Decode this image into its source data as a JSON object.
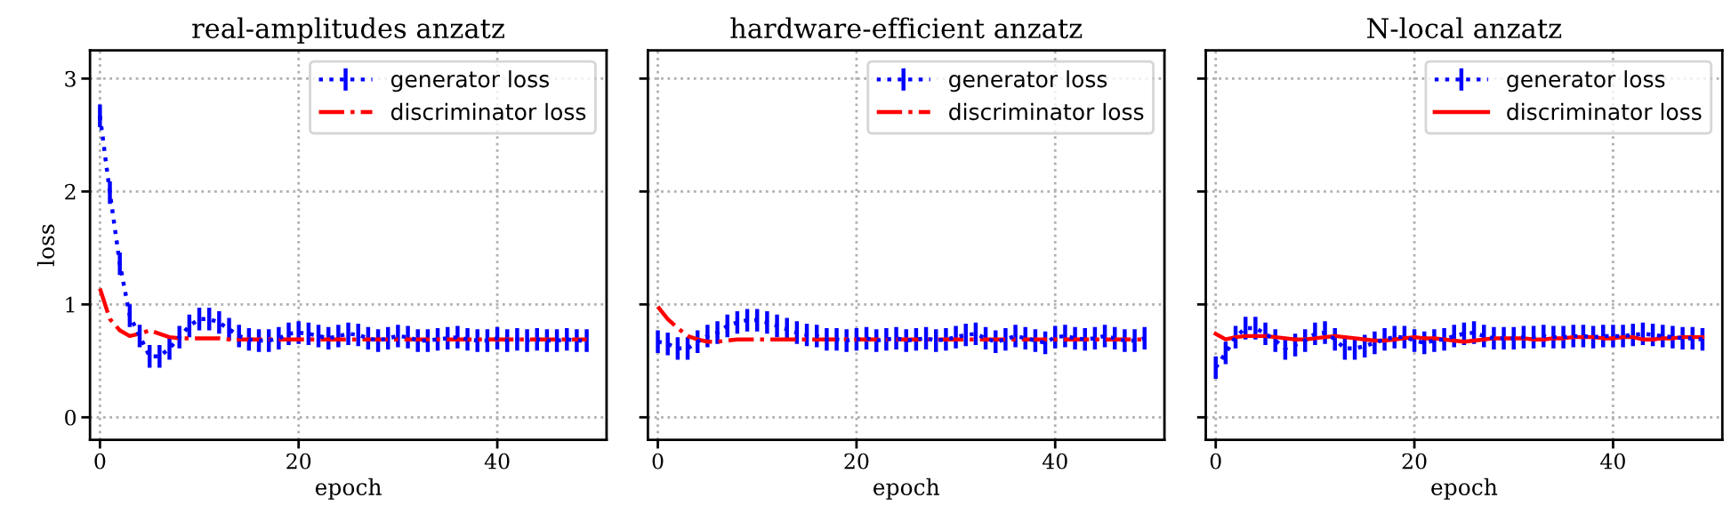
{
  "chart_data": [
    {
      "type": "line",
      "title": "real-amplitudes anzatz",
      "xlabel": "epoch",
      "ylabel": "loss",
      "xlim": [
        -1,
        51
      ],
      "xticks": [
        0,
        20,
        40
      ],
      "ylim": [
        -0.2,
        3.25
      ],
      "yticks": [
        0,
        1,
        2,
        3
      ],
      "grid": true,
      "legend": "top right",
      "x": [
        0,
        1,
        2,
        3,
        4,
        5,
        6,
        7,
        8,
        9,
        10,
        11,
        12,
        13,
        14,
        15,
        16,
        17,
        18,
        19,
        20,
        21,
        22,
        23,
        24,
        25,
        26,
        27,
        28,
        29,
        30,
        31,
        32,
        33,
        34,
        35,
        36,
        37,
        38,
        39,
        40,
        41,
        42,
        43,
        44,
        45,
        46,
        47,
        48,
        49
      ],
      "series": [
        {
          "name": "generator loss",
          "color": "#0000ff",
          "line_style": "dotted",
          "values": [
            2.67,
            1.99,
            1.36,
            0.9,
            0.72,
            0.54,
            0.54,
            0.61,
            0.71,
            0.81,
            0.87,
            0.87,
            0.84,
            0.78,
            0.72,
            0.69,
            0.68,
            0.68,
            0.7,
            0.74,
            0.75,
            0.74,
            0.72,
            0.7,
            0.72,
            0.74,
            0.73,
            0.7,
            0.68,
            0.7,
            0.72,
            0.71,
            0.68,
            0.68,
            0.69,
            0.7,
            0.71,
            0.69,
            0.68,
            0.68,
            0.7,
            0.68,
            0.69,
            0.68,
            0.69,
            0.68,
            0.68,
            0.69,
            0.68,
            0.68
          ],
          "errors": [
            0.1,
            0.1,
            0.1,
            0.1,
            0.1,
            0.1,
            0.1,
            0.1,
            0.1,
            0.1,
            0.1,
            0.1,
            0.1,
            0.1,
            0.1,
            0.1,
            0.1,
            0.1,
            0.1,
            0.1,
            0.1,
            0.1,
            0.1,
            0.1,
            0.1,
            0.1,
            0.1,
            0.1,
            0.1,
            0.1,
            0.1,
            0.1,
            0.1,
            0.1,
            0.1,
            0.1,
            0.1,
            0.1,
            0.1,
            0.1,
            0.1,
            0.1,
            0.1,
            0.1,
            0.1,
            0.1,
            0.1,
            0.1,
            0.1,
            0.1
          ]
        },
        {
          "name": "discriminator loss",
          "color": "#ff0000",
          "line_style": "dashdot",
          "values": [
            1.14,
            0.87,
            0.77,
            0.72,
            0.74,
            0.77,
            0.74,
            0.71,
            0.7,
            0.7,
            0.7,
            0.7,
            0.7,
            0.69,
            0.69,
            0.69,
            0.69,
            0.69,
            0.69,
            0.69,
            0.69,
            0.69,
            0.69,
            0.69,
            0.69,
            0.69,
            0.69,
            0.69,
            0.69,
            0.69,
            0.69,
            0.69,
            0.69,
            0.69,
            0.69,
            0.69,
            0.69,
            0.69,
            0.69,
            0.69,
            0.69,
            0.69,
            0.69,
            0.69,
            0.69,
            0.69,
            0.69,
            0.69,
            0.69,
            0.69
          ]
        }
      ]
    },
    {
      "type": "line",
      "title": "hardware-efficient anzatz",
      "xlabel": "epoch",
      "xlim": [
        -1,
        51
      ],
      "xticks": [
        0,
        20,
        40
      ],
      "ylim": [
        -0.2,
        3.25
      ],
      "yticks": [
        0,
        1,
        2,
        3
      ],
      "tick_labels": "x",
      "grid": true,
      "legend": "top right",
      "x": [
        0,
        1,
        2,
        3,
        4,
        5,
        6,
        7,
        8,
        9,
        10,
        11,
        12,
        13,
        14,
        15,
        16,
        17,
        18,
        19,
        20,
        21,
        22,
        23,
        24,
        25,
        26,
        27,
        28,
        29,
        30,
        31,
        32,
        33,
        34,
        35,
        36,
        37,
        38,
        39,
        40,
        41,
        42,
        43,
        44,
        45,
        46,
        47,
        48,
        49
      ],
      "series": [
        {
          "name": "generator loss",
          "color": "#0000ff",
          "line_style": "dotted",
          "values": [
            0.67,
            0.65,
            0.61,
            0.61,
            0.67,
            0.72,
            0.75,
            0.81,
            0.84,
            0.86,
            0.86,
            0.84,
            0.81,
            0.78,
            0.75,
            0.73,
            0.72,
            0.69,
            0.69,
            0.68,
            0.69,
            0.7,
            0.68,
            0.69,
            0.7,
            0.68,
            0.69,
            0.7,
            0.68,
            0.69,
            0.71,
            0.73,
            0.74,
            0.7,
            0.67,
            0.69,
            0.72,
            0.7,
            0.68,
            0.66,
            0.71,
            0.72,
            0.7,
            0.69,
            0.7,
            0.72,
            0.7,
            0.68,
            0.68,
            0.7
          ],
          "errors": [
            0.1,
            0.1,
            0.1,
            0.1,
            0.1,
            0.1,
            0.1,
            0.1,
            0.1,
            0.1,
            0.1,
            0.1,
            0.1,
            0.1,
            0.1,
            0.1,
            0.1,
            0.1,
            0.1,
            0.1,
            0.1,
            0.1,
            0.1,
            0.1,
            0.1,
            0.1,
            0.1,
            0.1,
            0.1,
            0.1,
            0.1,
            0.1,
            0.1,
            0.1,
            0.1,
            0.1,
            0.1,
            0.1,
            0.1,
            0.1,
            0.1,
            0.1,
            0.1,
            0.1,
            0.1,
            0.1,
            0.1,
            0.1,
            0.1,
            0.1
          ]
        },
        {
          "name": "discriminator loss",
          "color": "#ff0000",
          "line_style": "dashdot",
          "values": [
            0.98,
            0.87,
            0.79,
            0.72,
            0.69,
            0.67,
            0.67,
            0.68,
            0.69,
            0.69,
            0.69,
            0.69,
            0.69,
            0.69,
            0.69,
            0.69,
            0.69,
            0.69,
            0.69,
            0.69,
            0.69,
            0.69,
            0.69,
            0.69,
            0.69,
            0.69,
            0.69,
            0.69,
            0.69,
            0.69,
            0.69,
            0.69,
            0.69,
            0.69,
            0.69,
            0.69,
            0.69,
            0.69,
            0.69,
            0.69,
            0.69,
            0.69,
            0.69,
            0.69,
            0.69,
            0.69,
            0.69,
            0.69,
            0.69,
            0.69
          ]
        }
      ]
    },
    {
      "type": "line",
      "title": "N-local anzatz",
      "xlabel": "epoch",
      "xlim": [
        -1,
        51
      ],
      "xticks": [
        0,
        20,
        40
      ],
      "ylim": [
        -0.2,
        3.25
      ],
      "yticks": [
        0,
        1,
        2,
        3
      ],
      "tick_labels": "x",
      "grid": true,
      "legend": "top right",
      "x": [
        0,
        1,
        2,
        3,
        4,
        5,
        6,
        7,
        8,
        9,
        10,
        11,
        12,
        13,
        14,
        15,
        16,
        17,
        18,
        19,
        20,
        21,
        22,
        23,
        24,
        25,
        26,
        27,
        28,
        29,
        30,
        31,
        32,
        33,
        34,
        35,
        36,
        37,
        38,
        39,
        40,
        41,
        42,
        43,
        44,
        45,
        46,
        47,
        48,
        49
      ],
      "series": [
        {
          "name": "generator loss",
          "color": "#0000ff",
          "line_style": "dotted",
          "values": [
            0.44,
            0.57,
            0.71,
            0.79,
            0.79,
            0.74,
            0.68,
            0.61,
            0.64,
            0.68,
            0.74,
            0.75,
            0.69,
            0.61,
            0.61,
            0.63,
            0.66,
            0.69,
            0.71,
            0.71,
            0.68,
            0.66,
            0.68,
            0.69,
            0.72,
            0.74,
            0.75,
            0.72,
            0.7,
            0.7,
            0.7,
            0.71,
            0.71,
            0.72,
            0.71,
            0.71,
            0.72,
            0.72,
            0.71,
            0.72,
            0.72,
            0.72,
            0.73,
            0.74,
            0.73,
            0.72,
            0.71,
            0.7,
            0.7,
            0.69
          ],
          "errors": [
            0.1,
            0.1,
            0.1,
            0.1,
            0.1,
            0.1,
            0.1,
            0.1,
            0.1,
            0.1,
            0.1,
            0.1,
            0.1,
            0.1,
            0.1,
            0.1,
            0.1,
            0.1,
            0.1,
            0.1,
            0.1,
            0.1,
            0.1,
            0.1,
            0.1,
            0.1,
            0.1,
            0.1,
            0.1,
            0.1,
            0.1,
            0.1,
            0.1,
            0.1,
            0.1,
            0.1,
            0.1,
            0.1,
            0.1,
            0.1,
            0.1,
            0.1,
            0.1,
            0.1,
            0.1,
            0.1,
            0.1,
            0.1,
            0.1,
            0.1
          ]
        },
        {
          "name": "discriminator loss",
          "color": "#ff0000",
          "line_style": "solid",
          "values": [
            0.74,
            0.69,
            0.71,
            0.72,
            0.72,
            0.72,
            0.71,
            0.7,
            0.69,
            0.69,
            0.7,
            0.71,
            0.72,
            0.71,
            0.7,
            0.69,
            0.68,
            0.68,
            0.69,
            0.7,
            0.71,
            0.7,
            0.7,
            0.69,
            0.68,
            0.67,
            0.68,
            0.69,
            0.7,
            0.7,
            0.7,
            0.7,
            0.69,
            0.69,
            0.7,
            0.7,
            0.71,
            0.71,
            0.71,
            0.7,
            0.7,
            0.71,
            0.71,
            0.69,
            0.69,
            0.7,
            0.7,
            0.71,
            0.71,
            0.71
          ]
        }
      ]
    }
  ]
}
